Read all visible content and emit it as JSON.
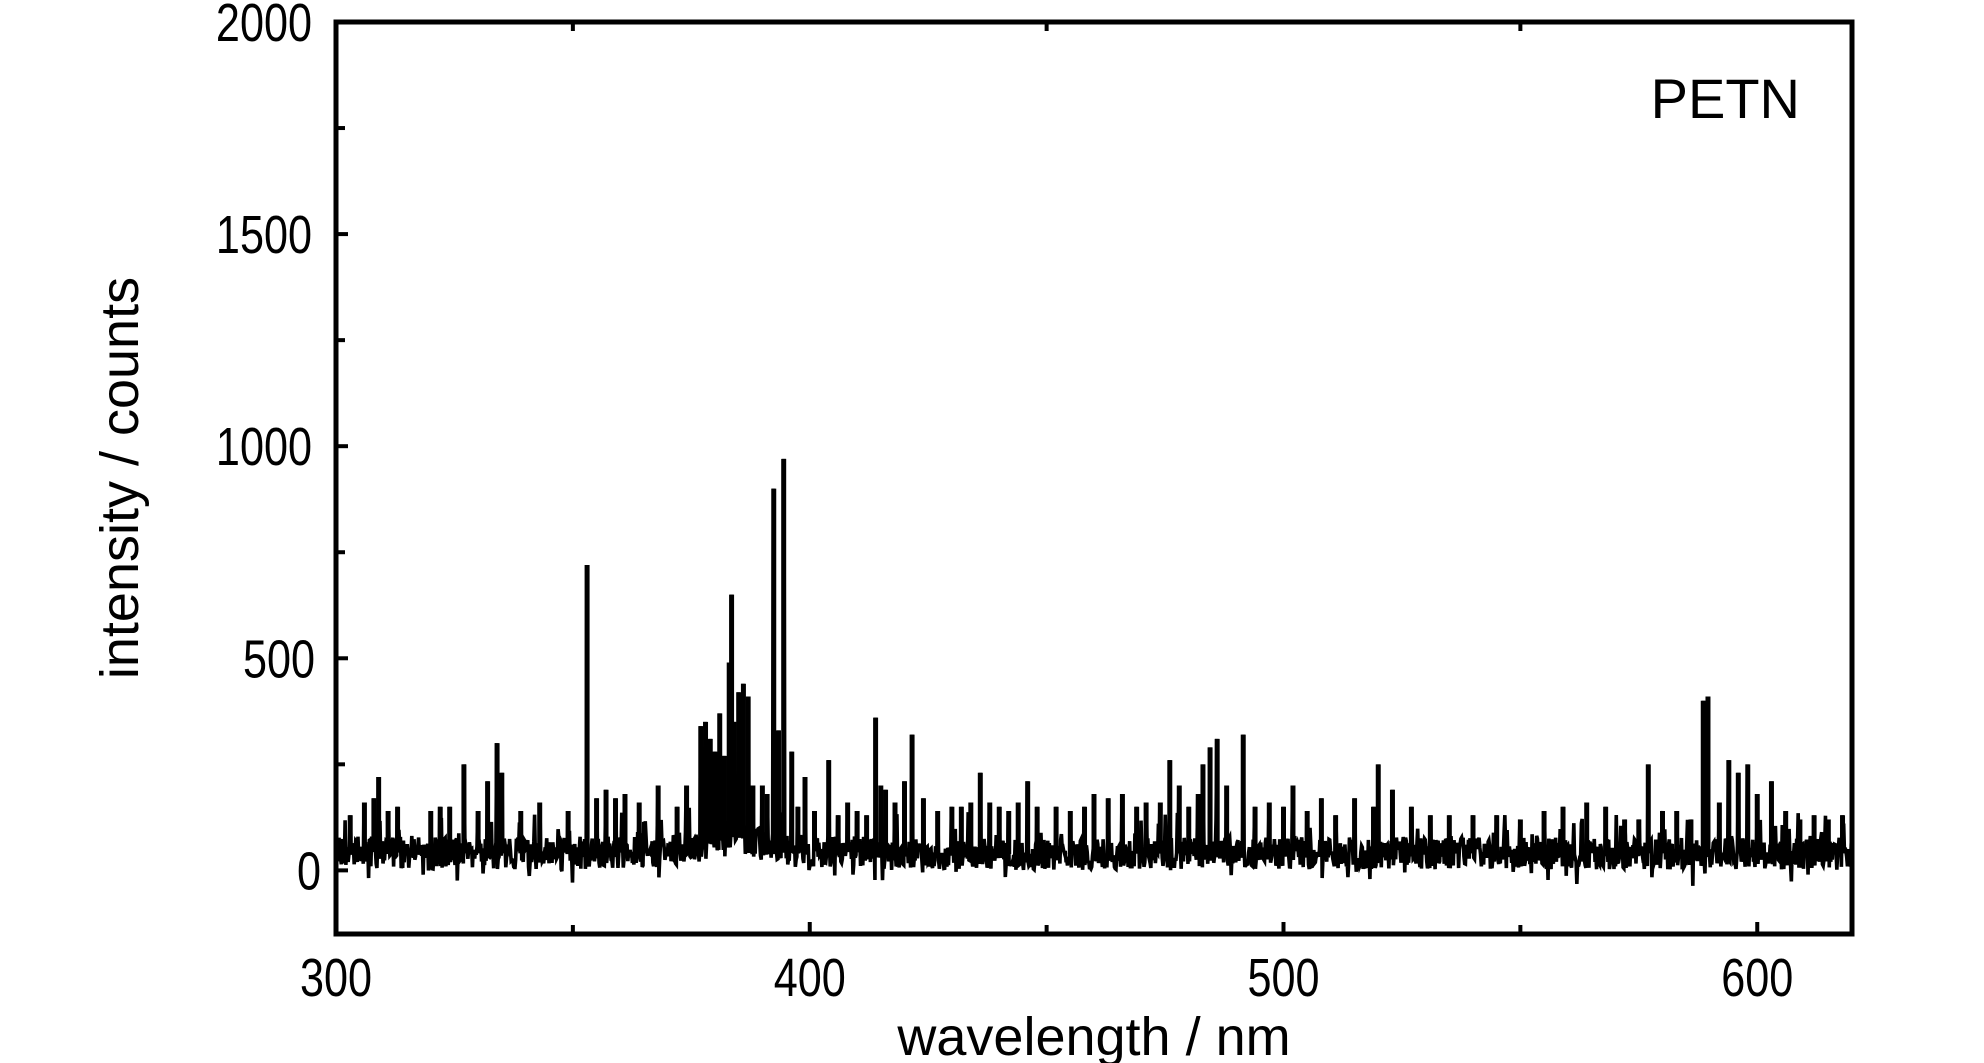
{
  "chart_data": {
    "type": "line",
    "title": "",
    "annotation": "PETN",
    "xlabel": "wavelength / nm",
    "ylabel": "intensity / counts",
    "xlim": [
      300,
      620
    ],
    "ylim": [
      -150,
      2000
    ],
    "x_major_ticks": [
      300,
      400,
      500,
      600
    ],
    "x_minor_ticks": [
      350,
      450,
      550
    ],
    "y_major_ticks": [
      0,
      500,
      1000,
      1500,
      2000
    ],
    "y_minor_ticks": [
      250,
      750,
      1250,
      1750
    ],
    "x_tick_labels": [
      "300",
      "400",
      "500",
      "600"
    ],
    "y_tick_labels": [
      "0",
      "500",
      "1000",
      "1500",
      "2000"
    ],
    "grid": false,
    "legend": false,
    "colors": {
      "line": "#000000",
      "axes": "#000000",
      "background": "#ffffff"
    },
    "baseline": {
      "x": [
        300,
        320,
        340,
        360,
        370,
        375,
        380,
        383,
        386,
        390,
        395,
        400,
        420,
        450,
        480,
        500,
        530,
        560,
        590,
        620
      ],
      "y": [
        45,
        40,
        40,
        40,
        45,
        55,
        65,
        80,
        75,
        60,
        50,
        45,
        40,
        38,
        40,
        40,
        40,
        40,
        40,
        40
      ]
    },
    "peaks": {
      "x": [
        303,
        306,
        308,
        309,
        311,
        313,
        320,
        322,
        324,
        327,
        330,
        332,
        334,
        335,
        339,
        343,
        349,
        353,
        355,
        357,
        359,
        361,
        364,
        368,
        372,
        374,
        377,
        378,
        379,
        380,
        381,
        382,
        383,
        383.5,
        384,
        385,
        386,
        387,
        388,
        390,
        391,
        392.4,
        393.4,
        394.5,
        396.2,
        397.5,
        399,
        401,
        404,
        406,
        408,
        410,
        412,
        413.9,
        415,
        416,
        418,
        420,
        421.6,
        424,
        427,
        430,
        432,
        434,
        436,
        438,
        440,
        442,
        444,
        446,
        448,
        452,
        455,
        458,
        460,
        463,
        466,
        469,
        471,
        474,
        476,
        478,
        480,
        482,
        483,
        484.5,
        486,
        488,
        491.5,
        494,
        497,
        500,
        502,
        505,
        508,
        511,
        515,
        519,
        520,
        523,
        527,
        531,
        535,
        540,
        545,
        550,
        555,
        559,
        564,
        568,
        572,
        575,
        577,
        580,
        583,
        586,
        588.6,
        589.6,
        592,
        594,
        596,
        598,
        600,
        603,
        606,
        609,
        612,
        615,
        618
      ],
      "y": [
        130,
        160,
        170,
        220,
        140,
        150,
        140,
        150,
        150,
        250,
        140,
        210,
        300,
        230,
        140,
        160,
        140,
        720,
        170,
        190,
        170,
        180,
        160,
        200,
        150,
        200,
        340,
        350,
        310,
        280,
        370,
        270,
        490,
        650,
        350,
        420,
        440,
        410,
        200,
        200,
        180,
        900,
        330,
        970,
        280,
        150,
        220,
        140,
        260,
        130,
        160,
        140,
        130,
        360,
        200,
        190,
        160,
        210,
        320,
        170,
        140,
        150,
        150,
        160,
        230,
        160,
        150,
        140,
        160,
        210,
        150,
        150,
        140,
        150,
        180,
        170,
        180,
        150,
        160,
        160,
        260,
        200,
        150,
        180,
        250,
        290,
        310,
        200,
        320,
        150,
        160,
        150,
        200,
        140,
        170,
        130,
        170,
        150,
        250,
        190,
        150,
        130,
        130,
        130,
        130,
        120,
        140,
        150,
        160,
        150,
        120,
        120,
        250,
        140,
        140,
        120,
        400,
        410,
        160,
        260,
        230,
        250,
        180,
        210,
        140,
        120,
        130,
        120,
        130
      ]
    }
  }
}
